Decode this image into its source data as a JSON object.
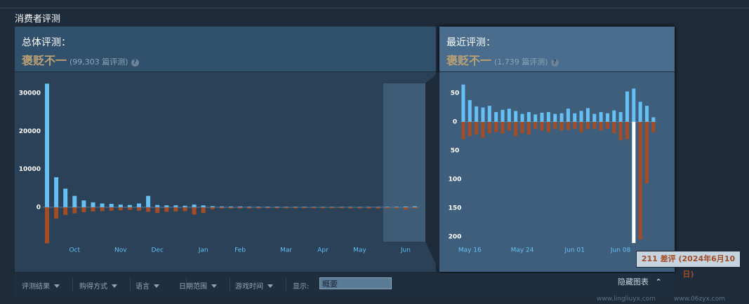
{
  "header": {
    "title": "消费者评测"
  },
  "summary": {
    "overall": {
      "label": "总体评测：",
      "rating": "褒贬不一",
      "count": "(99,303 篇评测)",
      "help": "?"
    },
    "recent": {
      "label": "最近评测：",
      "rating": "褒贬不一",
      "count": "(1,739 篇评测)",
      "help": "?"
    }
  },
  "filters": [
    "评测结果",
    "购得方式",
    "语言",
    "日期范围",
    "游戏时间"
  ],
  "display": {
    "label": "显示:",
    "value": "概要"
  },
  "toggle": "隐藏图表",
  "tooltip": "211 差评 (2024年6月10日)",
  "watermark": [
    "www.lingliuyx.com",
    "www.06zyx.com"
  ],
  "chart_data": [
    {
      "type": "bar",
      "categories": [
        null,
        null,
        null,
        "Oct",
        null,
        null,
        null,
        null,
        "Nov",
        null,
        null,
        null,
        "Dec",
        null,
        null,
        null,
        null,
        "Jan",
        null,
        null,
        null,
        "Feb",
        null,
        null,
        null,
        null,
        "Mar",
        null,
        null,
        null,
        "Apr",
        null,
        null,
        null,
        "May",
        null,
        null,
        null,
        null,
        "Jun",
        null
      ],
      "series": [
        {
          "color": "#66c0f4",
          "values": [
            32500,
            7900,
            4900,
            3000,
            1800,
            1300,
            1000,
            900,
            700,
            600,
            1000,
            3000,
            600,
            500,
            500,
            400,
            700,
            500,
            300,
            200,
            200,
            200,
            150,
            150,
            150,
            150,
            120,
            120,
            120,
            100,
            100,
            100,
            100,
            100,
            100,
            100,
            100,
            120,
            150,
            200,
            250
          ]
        },
        {
          "color": "#a34c25",
          "values": [
            -9500,
            -3000,
            -2000,
            -1600,
            -1300,
            -1100,
            -1000,
            -900,
            -800,
            -700,
            -900,
            -1200,
            -1500,
            -1200,
            -1100,
            -1000,
            -1900,
            -1500,
            -500,
            -300,
            -300,
            -300,
            -300,
            -300,
            -250,
            -250,
            -250,
            -250,
            -250,
            -250,
            -250,
            -250,
            -250,
            -300,
            -300,
            -300,
            -300,
            -300,
            -300,
            -600,
            -300
          ]
        }
      ],
      "ylim": [
        -12000,
        33000
      ],
      "yticks": [
        0,
        10000,
        20000,
        30000
      ]
    },
    {
      "type": "bar",
      "categories": [
        null,
        "May 16",
        null,
        null,
        null,
        null,
        null,
        null,
        null,
        "May 24",
        null,
        null,
        null,
        null,
        null,
        null,
        null,
        "Jun 01",
        null,
        null,
        null,
        null,
        null,
        null,
        "Jun 08",
        null,
        null,
        null,
        null,
        null
      ],
      "series": [
        {
          "color": "#66c0f4",
          "values": [
            65,
            38,
            27,
            25,
            28,
            17,
            21,
            23,
            19,
            14,
            17,
            13,
            16,
            17,
            14,
            15,
            23,
            15,
            19,
            24,
            14,
            17,
            15,
            20,
            17,
            53,
            58,
            35,
            28,
            8
          ]
        },
        {
          "colors": [
            "#a34c25",
            "#a34c25",
            "#a34c25",
            "#a34c25",
            "#a34c25",
            "#a34c25",
            "#a34c25",
            "#a34c25",
            "#a34c25",
            "#a34c25",
            "#a34c25",
            "#a34c25",
            "#a34c25",
            "#a34c25",
            "#a34c25",
            "#a34c25",
            "#a34c25",
            "#a34c25",
            "#a34c25",
            "#a34c25",
            "#a34c25",
            "#a34c25",
            "#a34c25",
            "#a34c25",
            "#a34c25",
            "#a34c25",
            "#ffffff",
            "#a34c25",
            "#a34c25",
            "#a34c25"
          ],
          "values": [
            -30,
            -25,
            -22,
            -28,
            -20,
            -18,
            -20,
            -15,
            -25,
            -20,
            -22,
            -12,
            -15,
            -18,
            -12,
            -15,
            -14,
            -12,
            -18,
            -13,
            -12,
            -15,
            -12,
            -20,
            -32,
            -30,
            -211,
            -205,
            -107,
            -18
          ]
        }
      ],
      "ylim": [
        -212,
        66
      ],
      "yticks": [
        50,
        0,
        {
          "value": -50,
          "label": "50"
        },
        {
          "value": -100,
          "label": "100"
        },
        {
          "value": -150,
          "label": "150"
        },
        {
          "value": -200,
          "label": "200"
        }
      ]
    }
  ]
}
